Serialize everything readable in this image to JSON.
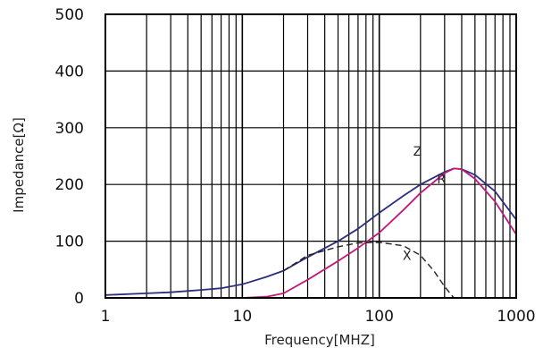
{
  "chart_data": {
    "type": "line",
    "xscale": "log",
    "xlim": [
      1,
      1000
    ],
    "ylim": [
      0,
      500
    ],
    "xlabel": "Frequency[MHZ]",
    "ylabel": "Impedance[Ω]",
    "x_ticks": [
      1,
      10,
      100,
      1000
    ],
    "x_tick_labels": [
      "1",
      "10",
      "100",
      "1000"
    ],
    "y_ticks": [
      0,
      100,
      200,
      300,
      400,
      500
    ],
    "y_tick_labels": [
      "0",
      "100",
      "200",
      "300",
      "400",
      "500"
    ],
    "grid": true,
    "series": [
      {
        "name": "Z",
        "color": "#2b2f7a",
        "dash": "solid",
        "x": [
          1,
          2,
          3,
          5,
          7,
          10,
          15,
          20,
          30,
          50,
          70,
          100,
          150,
          200,
          300,
          350,
          400,
          500,
          700,
          1000
        ],
        "y": [
          5,
          8,
          10,
          14,
          17,
          24,
          37,
          48,
          72,
          100,
          122,
          150,
          180,
          200,
          222,
          228,
          227,
          217,
          188,
          138
        ]
      },
      {
        "name": "R",
        "color": "#c2187a",
        "dash": "solid",
        "x": [
          1,
          5,
          10,
          15,
          20,
          30,
          50,
          70,
          100,
          150,
          200,
          300,
          350,
          400,
          500,
          700,
          1000
        ],
        "y": [
          0,
          0,
          0,
          2,
          8,
          32,
          65,
          88,
          115,
          155,
          185,
          220,
          228,
          227,
          210,
          170,
          112
        ]
      },
      {
        "name": "X",
        "color": "#222222",
        "dash": "dashed",
        "x": [
          20,
          30,
          50,
          70,
          100,
          150,
          200,
          250,
          300,
          350
        ],
        "y": [
          48,
          75,
          90,
          97,
          98,
          92,
          75,
          48,
          20,
          0
        ]
      }
    ]
  }
}
